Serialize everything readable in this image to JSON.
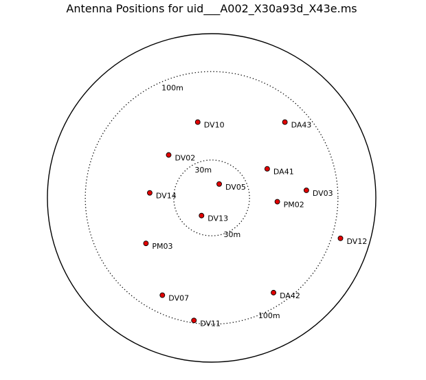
{
  "chart_data": {
    "type": "scatter",
    "title": "Antenna Positions for uid___A002_X30a93d_X43e.ms",
    "units": "m",
    "plot_radius_m": 130,
    "rings": [
      {
        "radius": 30,
        "style": "dotted",
        "labels": [
          "30m",
          "30m"
        ]
      },
      {
        "radius": 100,
        "style": "dotted",
        "labels": [
          "100m",
          "100m"
        ]
      },
      {
        "radius": 130,
        "style": "solid",
        "labels": []
      }
    ],
    "marker_color": "#e00000",
    "antennas": [
      {
        "name": "DV10",
        "x": -11,
        "y": 60
      },
      {
        "name": "DA43",
        "x": 58,
        "y": 60
      },
      {
        "name": "DV02",
        "x": -34,
        "y": 34
      },
      {
        "name": "DA41",
        "x": 44,
        "y": 23
      },
      {
        "name": "DV05",
        "x": 6,
        "y": 11
      },
      {
        "name": "DV03",
        "x": 75,
        "y": 6
      },
      {
        "name": "DV14",
        "x": -49,
        "y": 4
      },
      {
        "name": "PM02",
        "x": 52,
        "y": -3
      },
      {
        "name": "DV13",
        "x": -8,
        "y": -14
      },
      {
        "name": "PM03",
        "x": -52,
        "y": -36
      },
      {
        "name": "DV12",
        "x": 102,
        "y": -32
      },
      {
        "name": "DV07",
        "x": -39,
        "y": -77
      },
      {
        "name": "DA42",
        "x": 49,
        "y": -75
      },
      {
        "name": "DV11",
        "x": -14,
        "y": -97
      }
    ]
  }
}
